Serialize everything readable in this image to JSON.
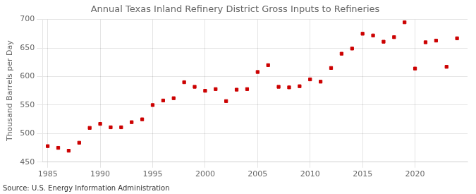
{
  "chart_data": {
    "type": "scatter",
    "title": "Annual Texas Inland Refinery District Gross Inputs to Refineries",
    "ylabel": "Thousand Barrels per Day",
    "source": "Source: U.S. Energy Information Administration",
    "x": [
      1985,
      1986,
      1987,
      1988,
      1989,
      1990,
      1991,
      1992,
      1993,
      1994,
      1995,
      1996,
      1997,
      1998,
      1999,
      2000,
      2001,
      2002,
      2003,
      2004,
      2005,
      2006,
      2007,
      2008,
      2009,
      2010,
      2011,
      2012,
      2013,
      2014,
      2015,
      2016,
      2017,
      2018,
      2019,
      2020,
      2021,
      2022,
      2023,
      2024
    ],
    "values": [
      478,
      475,
      470,
      484,
      510,
      517,
      511,
      511,
      520,
      525,
      550,
      558,
      562,
      590,
      582,
      575,
      578,
      557,
      577,
      578,
      608,
      620,
      582,
      581,
      583,
      595,
      591,
      615,
      640,
      649,
      675,
      672,
      661,
      669,
      695,
      614,
      660,
      663,
      617,
      667
    ],
    "color": "#cc0000",
    "marker": "square",
    "xlim": [
      1984.5,
      2025
    ],
    "xticks": [
      1985,
      1990,
      1995,
      2000,
      2005,
      2010,
      2015,
      2020
    ],
    "ylim": [
      450,
      700
    ],
    "yticks": [
      450,
      500,
      550,
      600,
      650,
      700
    ],
    "grid": true
  }
}
